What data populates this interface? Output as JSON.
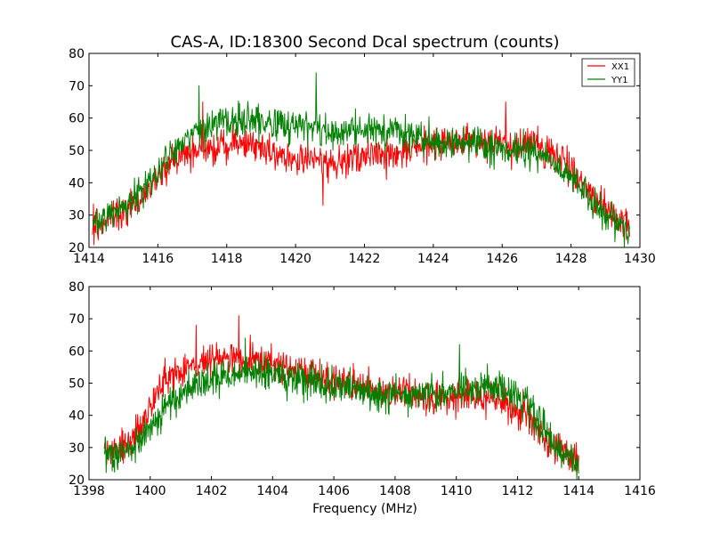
{
  "chart_data": [
    {
      "type": "line",
      "title": "CAS-A, ID:18300 Second Dcal spectrum (counts)",
      "xlabel": "",
      "ylabel": "",
      "xlim": [
        1414,
        1430
      ],
      "ylim": [
        20,
        80
      ],
      "xticks": [
        "1414",
        "1416",
        "1418",
        "1420",
        "1422",
        "1424",
        "1426",
        "1428",
        "1430"
      ],
      "yticks": [
        "20",
        "30",
        "40",
        "50",
        "60",
        "70",
        "80"
      ],
      "grid": false,
      "legend": "top-right",
      "x_range": [
        1414.1,
        1429.7
      ],
      "series": [
        {
          "name": "XX1",
          "color": "#ff0000",
          "noise": 4.5,
          "profile": [
            [
              1414.1,
              26
            ],
            [
              1415,
              31
            ],
            [
              1415.6,
              37
            ],
            [
              1416.2,
              45
            ],
            [
              1416.8,
              50
            ],
            [
              1418,
              52
            ],
            [
              1419,
              51
            ],
            [
              1420,
              47
            ],
            [
              1421,
              46
            ],
            [
              1422,
              48
            ],
            [
              1423,
              49
            ],
            [
              1424,
              52
            ],
            [
              1425,
              53
            ],
            [
              1426,
              52
            ],
            [
              1427,
              52
            ],
            [
              1428,
              44
            ],
            [
              1428.8,
              34
            ],
            [
              1429.7,
              26
            ]
          ],
          "spikes": [
            [
              1420.8,
              33
            ],
            [
              1417.3,
              65
            ],
            [
              1426.1,
              65
            ]
          ]
        },
        {
          "name": "YY1",
          "color": "#008000",
          "noise": 4.5,
          "profile": [
            [
              1414.1,
              27
            ],
            [
              1415,
              32
            ],
            [
              1415.6,
              38
            ],
            [
              1416.2,
              46
            ],
            [
              1416.8,
              53
            ],
            [
              1417.5,
              58
            ],
            [
              1419,
              59
            ],
            [
              1420,
              58
            ],
            [
              1421,
              56
            ],
            [
              1422,
              56
            ],
            [
              1423,
              55
            ],
            [
              1424,
              53
            ],
            [
              1425,
              52
            ],
            [
              1426,
              51
            ],
            [
              1427,
              49
            ],
            [
              1428,
              42
            ],
            [
              1428.8,
              32
            ],
            [
              1429.7,
              25
            ]
          ],
          "spikes": [
            [
              1420.6,
              74
            ],
            [
              1417.2,
              70
            ]
          ]
        }
      ]
    },
    {
      "type": "line",
      "title": "",
      "xlabel": "Frequency (MHz)",
      "ylabel": "",
      "xlim": [
        1398,
        1416
      ],
      "ylim": [
        20,
        80
      ],
      "xticks": [
        "1398",
        "1400",
        "1402",
        "1404",
        "1406",
        "1408",
        "1410",
        "1412",
        "1414",
        "1416"
      ],
      "yticks": [
        "20",
        "30",
        "40",
        "50",
        "60",
        "70",
        "80"
      ],
      "grid": false,
      "x_range": [
        1398.5,
        1414
      ],
      "series": [
        {
          "name": "XX1",
          "color": "#ff0000",
          "noise": 4.5,
          "profile": [
            [
              1398.5,
              28
            ],
            [
              1399.5,
              33
            ],
            [
              1400,
              42
            ],
            [
              1400.5,
              52
            ],
            [
              1401.5,
              56
            ],
            [
              1402.5,
              58
            ],
            [
              1403.5,
              57
            ],
            [
              1404.5,
              55
            ],
            [
              1405.5,
              52
            ],
            [
              1406.5,
              50
            ],
            [
              1407.5,
              47
            ],
            [
              1408.5,
              46
            ],
            [
              1409.5,
              45
            ],
            [
              1410.5,
              46
            ],
            [
              1411.5,
              45
            ],
            [
              1412.3,
              40
            ],
            [
              1412.8,
              34
            ],
            [
              1413.3,
              29
            ],
            [
              1414,
              27
            ]
          ],
          "spikes": [
            [
              1402.9,
              71
            ],
            [
              1401.5,
              68
            ]
          ]
        },
        {
          "name": "YY1",
          "color": "#008000",
          "noise": 4.5,
          "profile": [
            [
              1398.5,
              26
            ],
            [
              1399.5,
              30
            ],
            [
              1400,
              36
            ],
            [
              1400.5,
              43
            ],
            [
              1401.5,
              50
            ],
            [
              1402.5,
              52
            ],
            [
              1403.5,
              54
            ],
            [
              1404.5,
              52
            ],
            [
              1405.5,
              50
            ],
            [
              1406.5,
              49
            ],
            [
              1407.5,
              46
            ],
            [
              1408.5,
              46
            ],
            [
              1409.5,
              47
            ],
            [
              1410.5,
              49
            ],
            [
              1411.5,
              48
            ],
            [
              1412.3,
              44
            ],
            [
              1412.8,
              36
            ],
            [
              1413.3,
              30
            ],
            [
              1414,
              25
            ]
          ],
          "spikes": [
            [
              1410.1,
              62
            ],
            [
              1403.1,
              64
            ]
          ]
        }
      ]
    }
  ]
}
